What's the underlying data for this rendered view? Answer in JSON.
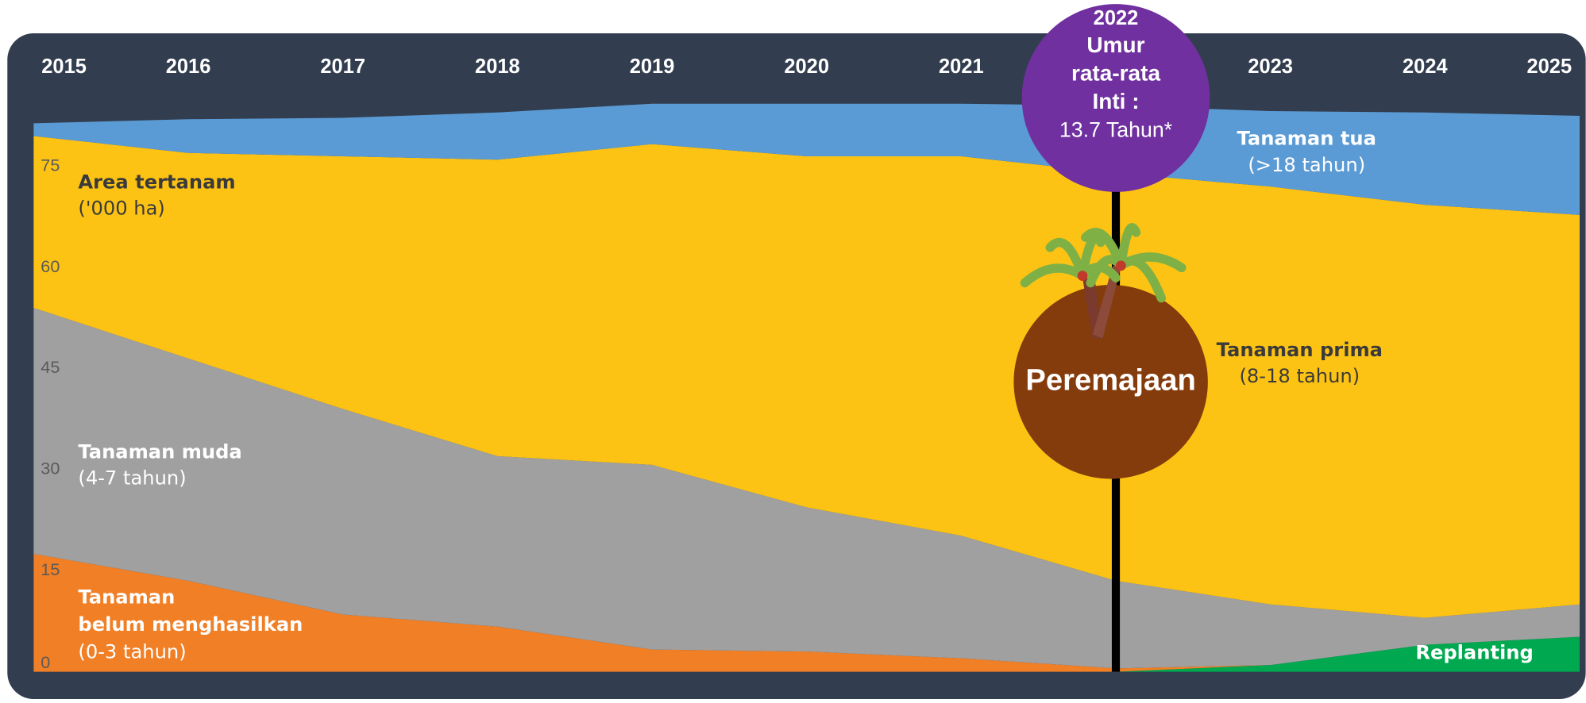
{
  "chart_data": {
    "type": "stacked_area",
    "ylabel": "Area tertanam",
    "yunit": "('000 ha)",
    "categories": [
      "2015",
      "2016",
      "2017",
      "2018",
      "2019",
      "2020",
      "2021",
      "2022",
      "2023",
      "2024",
      "2025"
    ],
    "ylim": [
      0,
      85
    ],
    "yticks": [
      0,
      15,
      30,
      45,
      60,
      75
    ],
    "series": [
      {
        "name": "Replanting",
        "color": "#00a84f",
        "values": [
          0,
          0,
          0,
          0,
          0,
          0,
          0,
          0,
          1,
          4,
          5.2
        ]
      },
      {
        "name": "Tanaman belum menghasilkan",
        "range": "(0-3 tahun)",
        "color": "#f07f26",
        "values": [
          17.5,
          13.5,
          8.5,
          6.7,
          3.3,
          3,
          2,
          0.5,
          0,
          0,
          0
        ]
      },
      {
        "name": "Tanaman muda",
        "range": "(4-7 tahun)",
        "color": "#a0a0a0",
        "values": [
          36.5,
          33,
          30.5,
          25.3,
          27.4,
          21.4,
          18.2,
          13,
          9,
          4,
          4.8
        ]
      },
      {
        "name": "Tanaman prima",
        "range": "(8-18 tahun)",
        "color": "#fdc314",
        "values": [
          25.5,
          30.5,
          37.5,
          44,
          47.6,
          52.1,
          56.3,
          60.5,
          62,
          61.3,
          57.8
        ]
      },
      {
        "name": "Tanaman tua",
        "range": "(>18 tahun)",
        "color": "#5b9bd5",
        "values": [
          1.9,
          5,
          5.7,
          7,
          6,
          7.8,
          7.8,
          10,
          11.2,
          13.7,
          14.7
        ]
      }
    ],
    "annotations": {
      "age_lines": [
        "Umur",
        "rata-rata",
        "Inti :"
      ],
      "age_value": "13.7 Tahun*",
      "replanting_label": "Peremajaan"
    }
  }
}
